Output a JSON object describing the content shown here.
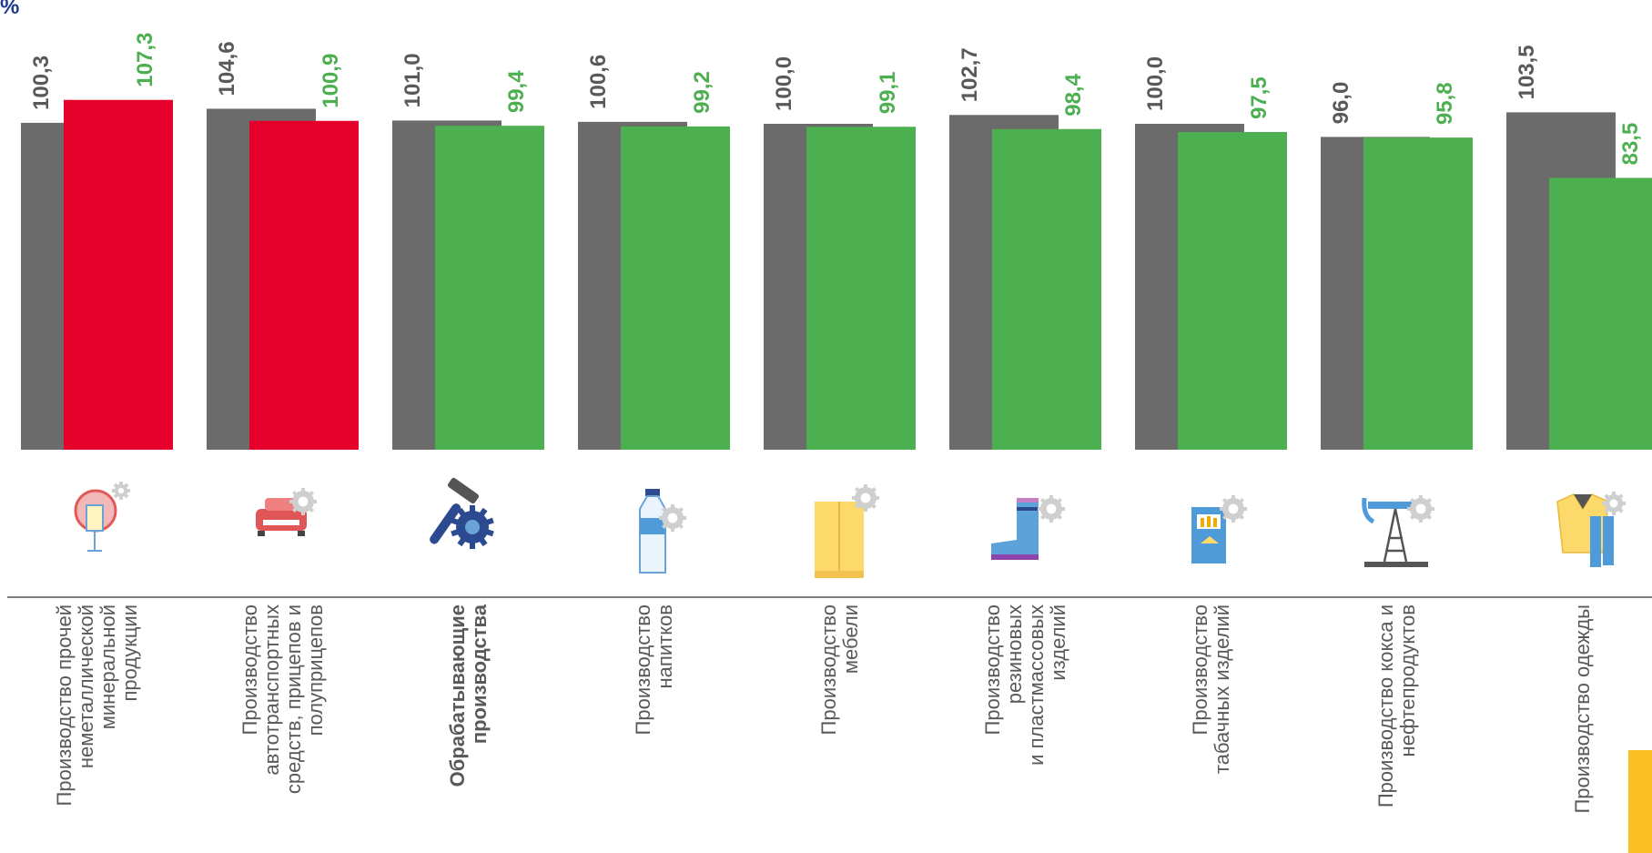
{
  "chart_data": {
    "type": "bar",
    "unit_label": "%",
    "categories": [
      {
        "lines": [
          "Производство прочей",
          "неметаллической",
          "минеральной",
          "продукции"
        ],
        "icon": "glass-icon",
        "bold": false
      },
      {
        "lines": [
          "Производство",
          "автотранспортных",
          "средств, прицепов и",
          "полуприцепов"
        ],
        "icon": "car-icon",
        "bold": false
      },
      {
        "lines": [
          "Обрабатывающие",
          "производства"
        ],
        "icon": "hammer-gear-icon",
        "bold": true
      },
      {
        "lines": [
          "Производство",
          "напитков"
        ],
        "icon": "bottle-icon",
        "bold": false
      },
      {
        "lines": [
          "Производство",
          "мебели"
        ],
        "icon": "wardrobe-icon",
        "bold": false
      },
      {
        "lines": [
          "Производство",
          "резиновых",
          "и пластмассовых",
          "изделий"
        ],
        "icon": "boot-icon",
        "bold": false
      },
      {
        "lines": [
          "Производство",
          "табачных изделий"
        ],
        "icon": "cigarettes-icon",
        "bold": false
      },
      {
        "lines": [
          "Производство кокса и",
          "нефтепродуктов"
        ],
        "icon": "oil-pump-icon",
        "bold": false
      },
      {
        "lines": [
          "Производство одежды"
        ],
        "icon": "clothing-icon",
        "bold": false
      }
    ],
    "series": [
      {
        "values": [
          100.3,
          104.6,
          101.0,
          100.6,
          100.0,
          102.7,
          100.0,
          96.0,
          103.5
        ],
        "labels": [
          "100,3",
          "104,6",
          "101,0",
          "100,6",
          "100,0",
          "102,7",
          "100,0",
          "96,0",
          "103,5"
        ],
        "color": "#6b6b6b"
      },
      {
        "values": [
          107.3,
          100.9,
          99.4,
          99.2,
          99.1,
          98.4,
          97.5,
          95.8,
          83.5
        ],
        "labels": [
          "107,3",
          "100,9",
          "99,4",
          "99,2",
          "99,1",
          "98,4",
          "97,5",
          "95,8",
          "83,5"
        ],
        "colors": [
          "#e4002b",
          "#e4002b",
          "#4caf50",
          "#4caf50",
          "#4caf50",
          "#4caf50",
          "#4caf50",
          "#4caf50",
          "#4caf50"
        ],
        "label_colors": [
          "#4caf50",
          "#4caf50",
          "#4caf50",
          "#4caf50",
          "#4caf50",
          "#4caf50",
          "#4caf50",
          "#4caf50",
          "#4caf50"
        ]
      }
    ],
    "grid": false,
    "legend": "none"
  },
  "colors": {
    "axis": "#7f7f7f",
    "accent": "#fbbf24",
    "unit": "#1f3b8f"
  }
}
